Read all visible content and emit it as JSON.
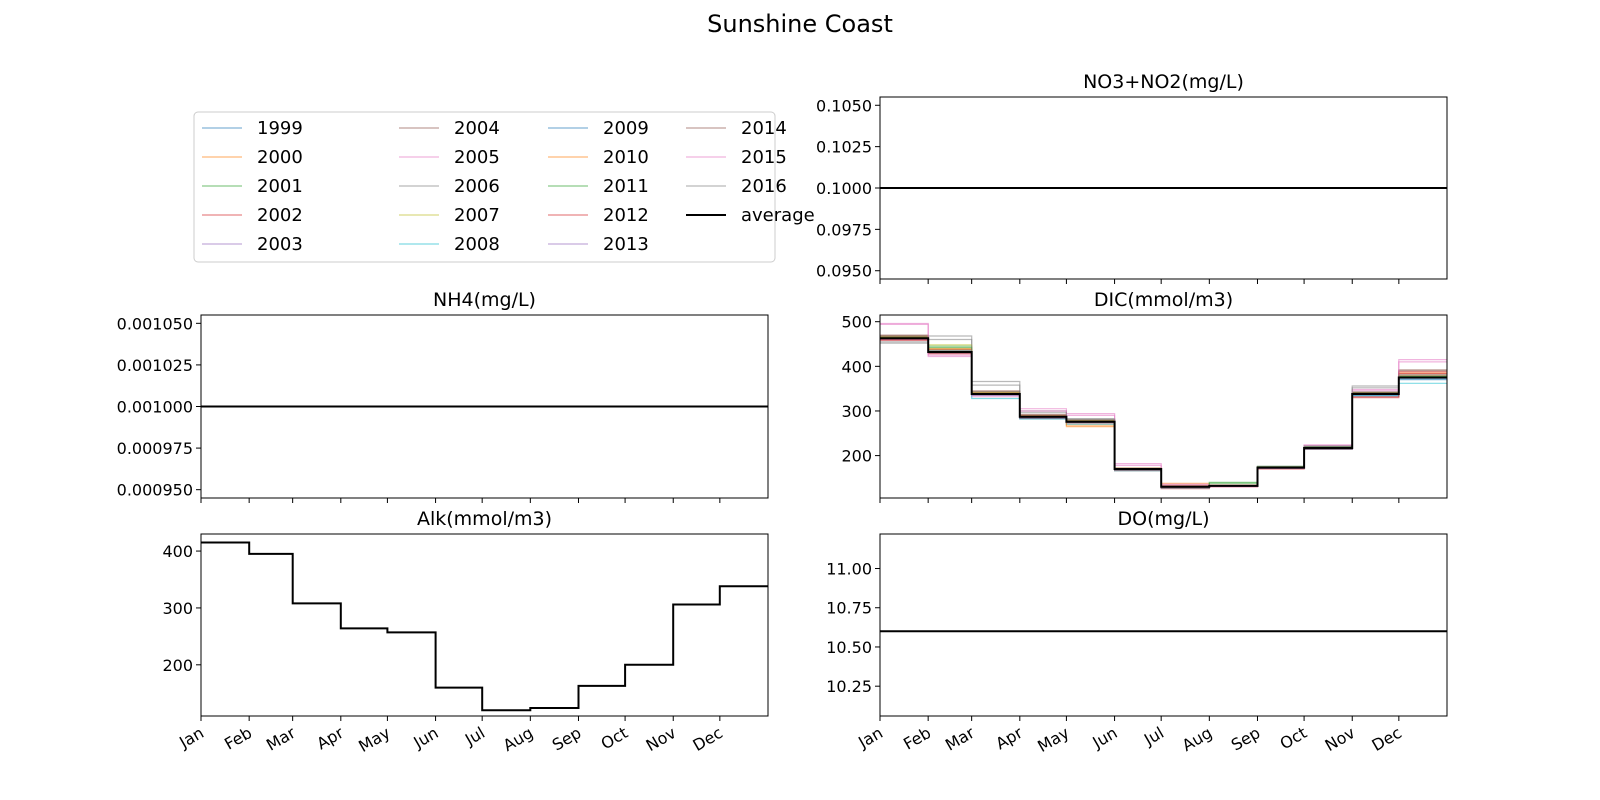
{
  "figure": {
    "title": "Sunshine Coast"
  },
  "legend": {
    "entries": [
      "1999",
      "2000",
      "2001",
      "2002",
      "2003",
      "2004",
      "2005",
      "2006",
      "2007",
      "2008",
      "2009",
      "2010",
      "2011",
      "2012",
      "2013",
      "2014",
      "2015",
      "2016",
      "average"
    ],
    "colors": [
      "#1f77b4",
      "#ff7f0e",
      "#2ca02c",
      "#d62728",
      "#9467bd",
      "#8c564b",
      "#e377c2",
      "#7f7f7f",
      "#bcbd22",
      "#17becf",
      "#1f77b4",
      "#ff7f0e",
      "#2ca02c",
      "#d62728",
      "#9467bd",
      "#8c564b",
      "#e377c2",
      "#7f7f7f",
      "#000000"
    ],
    "placement": "upper-left panel"
  },
  "chart_data": [
    {
      "id": "no3",
      "type": "line",
      "title": "NO3+NO2(mg/L)",
      "month_labels_shown": false,
      "ylim": [
        0.0945,
        0.1055
      ],
      "yticks": [
        0.095,
        0.0975,
        0.1,
        0.1025,
        0.105
      ],
      "ytick_labels": [
        "0.0950",
        "0.0975",
        "0.1000",
        "0.1025",
        "0.1050"
      ],
      "average": [
        0.1,
        0.1,
        0.1,
        0.1,
        0.1,
        0.1,
        0.1,
        0.1,
        0.1,
        0.1,
        0.1,
        0.1
      ],
      "years": []
    },
    {
      "id": "nh4",
      "type": "line",
      "title": "NH4(mg/L)",
      "month_labels_shown": false,
      "ylim": [
        0.000945,
        0.001055
      ],
      "yticks": [
        0.00095,
        0.000975,
        0.001,
        0.001025,
        0.00105
      ],
      "ytick_labels": [
        "0.000950",
        "0.000975",
        "0.001000",
        "0.001025",
        "0.001050"
      ],
      "average": [
        0.001,
        0.001,
        0.001,
        0.001,
        0.001,
        0.001,
        0.001,
        0.001,
        0.001,
        0.001,
        0.001,
        0.001
      ],
      "years": []
    },
    {
      "id": "dic",
      "type": "line",
      "title": "DIC(mmol/m3)",
      "month_labels_shown": false,
      "ylim": [
        105,
        515
      ],
      "yticks": [
        200,
        300,
        400,
        500
      ],
      "ytick_labels": [
        "200",
        "300",
        "400",
        "500"
      ],
      "average": [
        463,
        432,
        338,
        287,
        276,
        170,
        130,
        132,
        173,
        217,
        338,
        375
      ],
      "years": [
        {
          "name": "1999",
          "values": [
            465,
            430,
            335,
            285,
            275,
            168,
            128,
            132,
            172,
            215,
            335,
            372
          ]
        },
        {
          "name": "2000",
          "values": [
            468,
            440,
            340,
            290,
            265,
            172,
            138,
            134,
            175,
            218,
            340,
            385
          ]
        },
        {
          "name": "2001",
          "values": [
            466,
            445,
            342,
            287,
            278,
            168,
            130,
            140,
            176,
            220,
            342,
            378
          ]
        },
        {
          "name": "2002",
          "values": [
            458,
            428,
            336,
            283,
            273,
            166,
            126,
            130,
            170,
            214,
            330,
            388
          ]
        },
        {
          "name": "2003",
          "values": [
            460,
            432,
            338,
            286,
            276,
            170,
            129,
            131,
            173,
            216,
            337,
            376
          ]
        },
        {
          "name": "2004",
          "values": [
            470,
            436,
            345,
            292,
            280,
            172,
            132,
            134,
            174,
            219,
            342,
            392
          ]
        },
        {
          "name": "2005",
          "values": [
            496,
            422,
            332,
            305,
            294,
            182,
            136,
            130,
            171,
            224,
            348,
            415
          ]
        },
        {
          "name": "2006",
          "values": [
            452,
            468,
            366,
            300,
            283,
            170,
            131,
            133,
            176,
            222,
            356,
            382
          ]
        },
        {
          "name": "2007",
          "values": [
            464,
            448,
            338,
            288,
            279,
            171,
            130,
            132,
            174,
            218,
            340,
            376
          ]
        },
        {
          "name": "2008",
          "values": [
            467,
            434,
            328,
            282,
            270,
            166,
            127,
            131,
            172,
            214,
            333,
            362
          ]
        },
        {
          "name": "2009",
          "values": [
            462,
            430,
            336,
            284,
            274,
            168,
            129,
            131,
            172,
            215,
            336,
            370
          ]
        },
        {
          "name": "2010",
          "values": [
            466,
            438,
            340,
            288,
            268,
            170,
            134,
            133,
            174,
            217,
            339,
            380
          ]
        },
        {
          "name": "2011",
          "values": [
            464,
            442,
            339,
            287,
            276,
            169,
            131,
            138,
            175,
            219,
            340,
            377
          ]
        },
        {
          "name": "2012",
          "values": [
            460,
            430,
            337,
            285,
            275,
            168,
            128,
            131,
            172,
            215,
            332,
            384
          ]
        },
        {
          "name": "2013",
          "values": [
            462,
            431,
            338,
            286,
            276,
            169,
            130,
            132,
            173,
            216,
            337,
            375
          ]
        },
        {
          "name": "2014",
          "values": [
            468,
            437,
            343,
            290,
            279,
            171,
            131,
            133,
            174,
            218,
            341,
            390
          ]
        },
        {
          "name": "2015",
          "values": [
            494,
            425,
            335,
            300,
            290,
            178,
            134,
            131,
            172,
            222,
            345,
            410
          ]
        },
        {
          "name": "2016",
          "values": [
            455,
            460,
            358,
            296,
            281,
            170,
            130,
            133,
            175,
            221,
            352,
            380
          ]
        }
      ]
    },
    {
      "id": "alk",
      "type": "line",
      "title": "Alk(mmol/m3)",
      "month_labels_shown": true,
      "ylim": [
        110,
        430
      ],
      "yticks": [
        200,
        300,
        400
      ],
      "ytick_labels": [
        "200",
        "300",
        "400"
      ],
      "average": [
        415,
        395,
        308,
        264,
        257,
        160,
        120,
        124,
        163,
        200,
        306,
        338
      ],
      "years": []
    },
    {
      "id": "do",
      "type": "line",
      "title": "DO(mg/L)",
      "month_labels_shown": true,
      "ylim": [
        10.06,
        11.22
      ],
      "yticks": [
        10.25,
        10.5,
        10.75,
        11.0
      ],
      "ytick_labels": [
        "10.25",
        "10.50",
        "10.75",
        "11.00"
      ],
      "average": [
        10.6,
        10.6,
        10.6,
        10.6,
        10.6,
        10.6,
        10.6,
        10.6,
        10.6,
        10.6,
        10.6,
        10.6
      ],
      "years": []
    }
  ],
  "months": [
    "Jan",
    "Feb",
    "Mar",
    "Apr",
    "May",
    "Jun",
    "Jul",
    "Aug",
    "Sep",
    "Oct",
    "Nov",
    "Dec"
  ]
}
